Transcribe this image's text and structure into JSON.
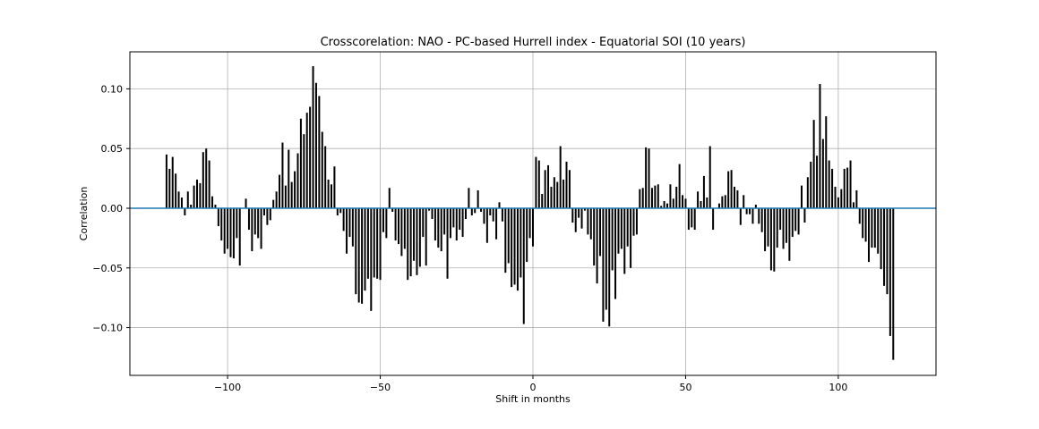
{
  "chart_data": {
    "type": "bar",
    "title": "Crosscorelation: NAO - PC-based Hurrell index - Equatorial SOI (10 years)",
    "xlabel": "Shift in months",
    "ylabel": "Correlation",
    "xlim": [
      -132,
      132
    ],
    "ylim": [
      -0.14,
      0.131
    ],
    "grid": true,
    "x_ticks": [
      -100,
      -50,
      0,
      50,
      100
    ],
    "x_tick_labels": [
      "−100",
      "−50",
      "0",
      "50",
      "100"
    ],
    "y_ticks": [
      0.1,
      0.05,
      0.0,
      -0.05,
      -0.1
    ],
    "y_tick_labels": [
      "0.10",
      "0.05",
      "0.00",
      "−0.05",
      "−0.10"
    ],
    "bar_color": "#000000",
    "zero_line_color": "#1f77b4",
    "series": [
      {
        "x_start": -120,
        "x_step": 1,
        "values": [
          0.045,
          0.033,
          0.043,
          0.029,
          0.014,
          0.009,
          -0.006,
          0.014,
          0.003,
          0.019,
          0.024,
          0.021,
          0.047,
          0.05,
          0.04,
          0.01,
          0.003,
          -0.015,
          -0.027,
          -0.038,
          -0.034,
          -0.041,
          -0.042,
          -0.025,
          -0.048,
          0.0,
          0.008,
          -0.018,
          -0.036,
          -0.022,
          -0.025,
          -0.034,
          -0.006,
          -0.014,
          -0.01,
          0.007,
          0.014,
          0.028,
          0.055,
          0.019,
          0.049,
          0.022,
          0.031,
          0.046,
          0.075,
          0.062,
          0.08,
          0.085,
          0.119,
          0.105,
          0.094,
          0.064,
          0.052,
          0.024,
          0.02,
          0.035,
          -0.006,
          -0.004,
          -0.019,
          -0.038,
          -0.024,
          -0.032,
          -0.072,
          -0.079,
          -0.08,
          -0.069,
          -0.059,
          -0.086,
          -0.058,
          -0.059,
          -0.06,
          -0.02,
          -0.025,
          0.017,
          -0.003,
          -0.027,
          -0.03,
          -0.04,
          -0.034,
          -0.06,
          -0.057,
          -0.044,
          -0.056,
          -0.049,
          -0.024,
          -0.048,
          -0.002,
          -0.009,
          -0.027,
          -0.033,
          -0.036,
          -0.022,
          -0.059,
          -0.025,
          -0.016,
          -0.027,
          -0.018,
          -0.024,
          -0.009,
          0.017,
          -0.006,
          -0.004,
          0.015,
          -0.003,
          -0.013,
          -0.029,
          -0.006,
          -0.011,
          -0.026,
          0.005,
          -0.011,
          -0.054,
          -0.046,
          -0.066,
          -0.064,
          -0.069,
          -0.058,
          -0.097,
          -0.045,
          -0.025,
          -0.032,
          0.043,
          0.04,
          0.012,
          0.032,
          0.036,
          0.018,
          0.026,
          0.022,
          0.052,
          0.024,
          0.039,
          0.032,
          -0.012,
          -0.02,
          -0.008,
          -0.017,
          -0.002,
          -0.022,
          -0.026,
          -0.048,
          -0.063,
          -0.04,
          -0.095,
          -0.085,
          -0.099,
          -0.052,
          -0.076,
          -0.038,
          -0.034,
          -0.055,
          -0.032,
          -0.05,
          -0.023,
          -0.022,
          0.016,
          0.017,
          0.051,
          0.05,
          0.017,
          0.019,
          0.02,
          0.002,
          0.006,
          0.004,
          0.02,
          0.008,
          0.018,
          0.037,
          0.011,
          0.008,
          -0.018,
          -0.016,
          -0.018,
          0.014,
          0.006,
          0.027,
          0.009,
          0.052,
          -0.018,
          0.0,
          0.004,
          0.01,
          0.011,
          0.031,
          0.032,
          0.018,
          0.015,
          -0.014,
          0.011,
          -0.005,
          -0.005,
          -0.013,
          0.003,
          -0.013,
          -0.02,
          -0.036,
          -0.032,
          -0.052,
          -0.053,
          -0.033,
          -0.018,
          -0.034,
          -0.029,
          -0.044,
          -0.024,
          -0.019,
          -0.022,
          0.019,
          -0.012,
          0.026,
          0.039,
          0.074,
          0.044,
          0.104,
          0.058,
          0.077,
          0.04,
          0.033,
          0.018,
          0.009,
          0.016,
          0.033,
          0.034,
          0.04,
          0.005,
          0.015,
          -0.013,
          -0.025,
          -0.028,
          -0.045,
          -0.033,
          -0.033,
          -0.038,
          -0.051,
          -0.065,
          -0.072,
          -0.107,
          -0.127
        ]
      }
    ]
  }
}
